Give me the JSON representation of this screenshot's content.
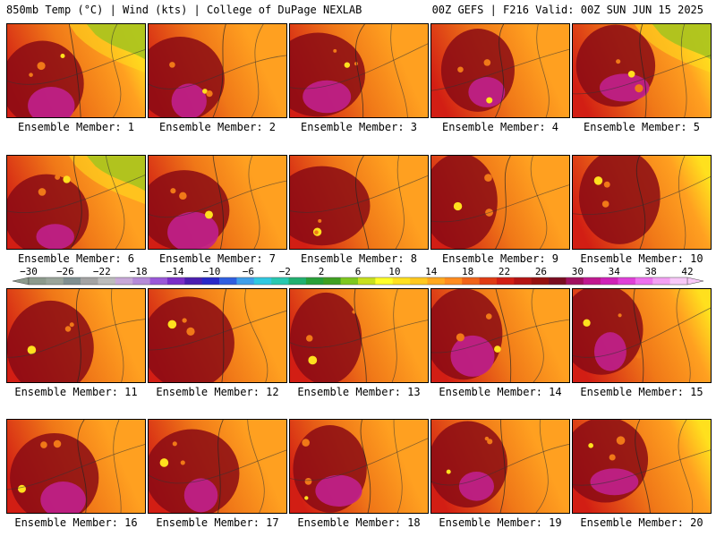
{
  "header": {
    "left": "850mb Temp (°C) | Wind (kts) | College of DuPage NEXLAB",
    "right": "00Z GEFS | F216 Valid: 00Z SUN JUN 15 2025"
  },
  "panels": [
    {
      "label": "Ensemble Member: 1"
    },
    {
      "label": "Ensemble Member: 2"
    },
    {
      "label": "Ensemble Member: 3"
    },
    {
      "label": "Ensemble Member: 4"
    },
    {
      "label": "Ensemble Member: 5"
    },
    {
      "label": "Ensemble Member: 6"
    },
    {
      "label": "Ensemble Member: 7"
    },
    {
      "label": "Ensemble Member: 8"
    },
    {
      "label": "Ensemble Member: 9"
    },
    {
      "label": "Ensemble Member: 10"
    },
    {
      "label": "Ensemble Member: 11"
    },
    {
      "label": "Ensemble Member: 12"
    },
    {
      "label": "Ensemble Member: 13"
    },
    {
      "label": "Ensemble Member: 14"
    },
    {
      "label": "Ensemble Member: 15"
    },
    {
      "label": "Ensemble Member: 16"
    },
    {
      "label": "Ensemble Member: 17"
    },
    {
      "label": "Ensemble Member: 18"
    },
    {
      "label": "Ensemble Member: 19"
    },
    {
      "label": "Ensemble Member: 20"
    }
  ],
  "colorbar": {
    "tick_labels": [
      "−30",
      "−26",
      "−22",
      "−18",
      "−14",
      "−10",
      "−6",
      "−2",
      "2",
      "6",
      "10",
      "14",
      "18",
      "22",
      "26",
      "30",
      "34",
      "38",
      "42"
    ],
    "colors": [
      "#8c9a8c",
      "#9aa59a",
      "#7f8f90",
      "#a3a3a3",
      "#bcbcbc",
      "#c8a8d8",
      "#b58ad8",
      "#9a58d8",
      "#7a2ec8",
      "#4b1eb0",
      "#2828c8",
      "#2f5fe0",
      "#3f9fea",
      "#30c8e0",
      "#28c8b0",
      "#20b070",
      "#28a038",
      "#3fa020",
      "#7ec81e",
      "#c8e01e",
      "#ffff28",
      "#ffe01e",
      "#ffc81e",
      "#ffa81e",
      "#ff8c1e",
      "#f06418",
      "#e03c14",
      "#d21e14",
      "#b41414",
      "#961010",
      "#7a0c20",
      "#a01060",
      "#c01890",
      "#d020b8",
      "#e040d8",
      "#ee70ee",
      "#f4a0f4",
      "#f8c8f8"
    ]
  },
  "colors": {
    "hot_core": "#8a0a14",
    "hot_red": "#d21e14",
    "orange": "#f07818",
    "amber": "#ffa020",
    "yellow": "#ffe01e",
    "green": "#3fa020",
    "magenta": "#c0208c"
  }
}
